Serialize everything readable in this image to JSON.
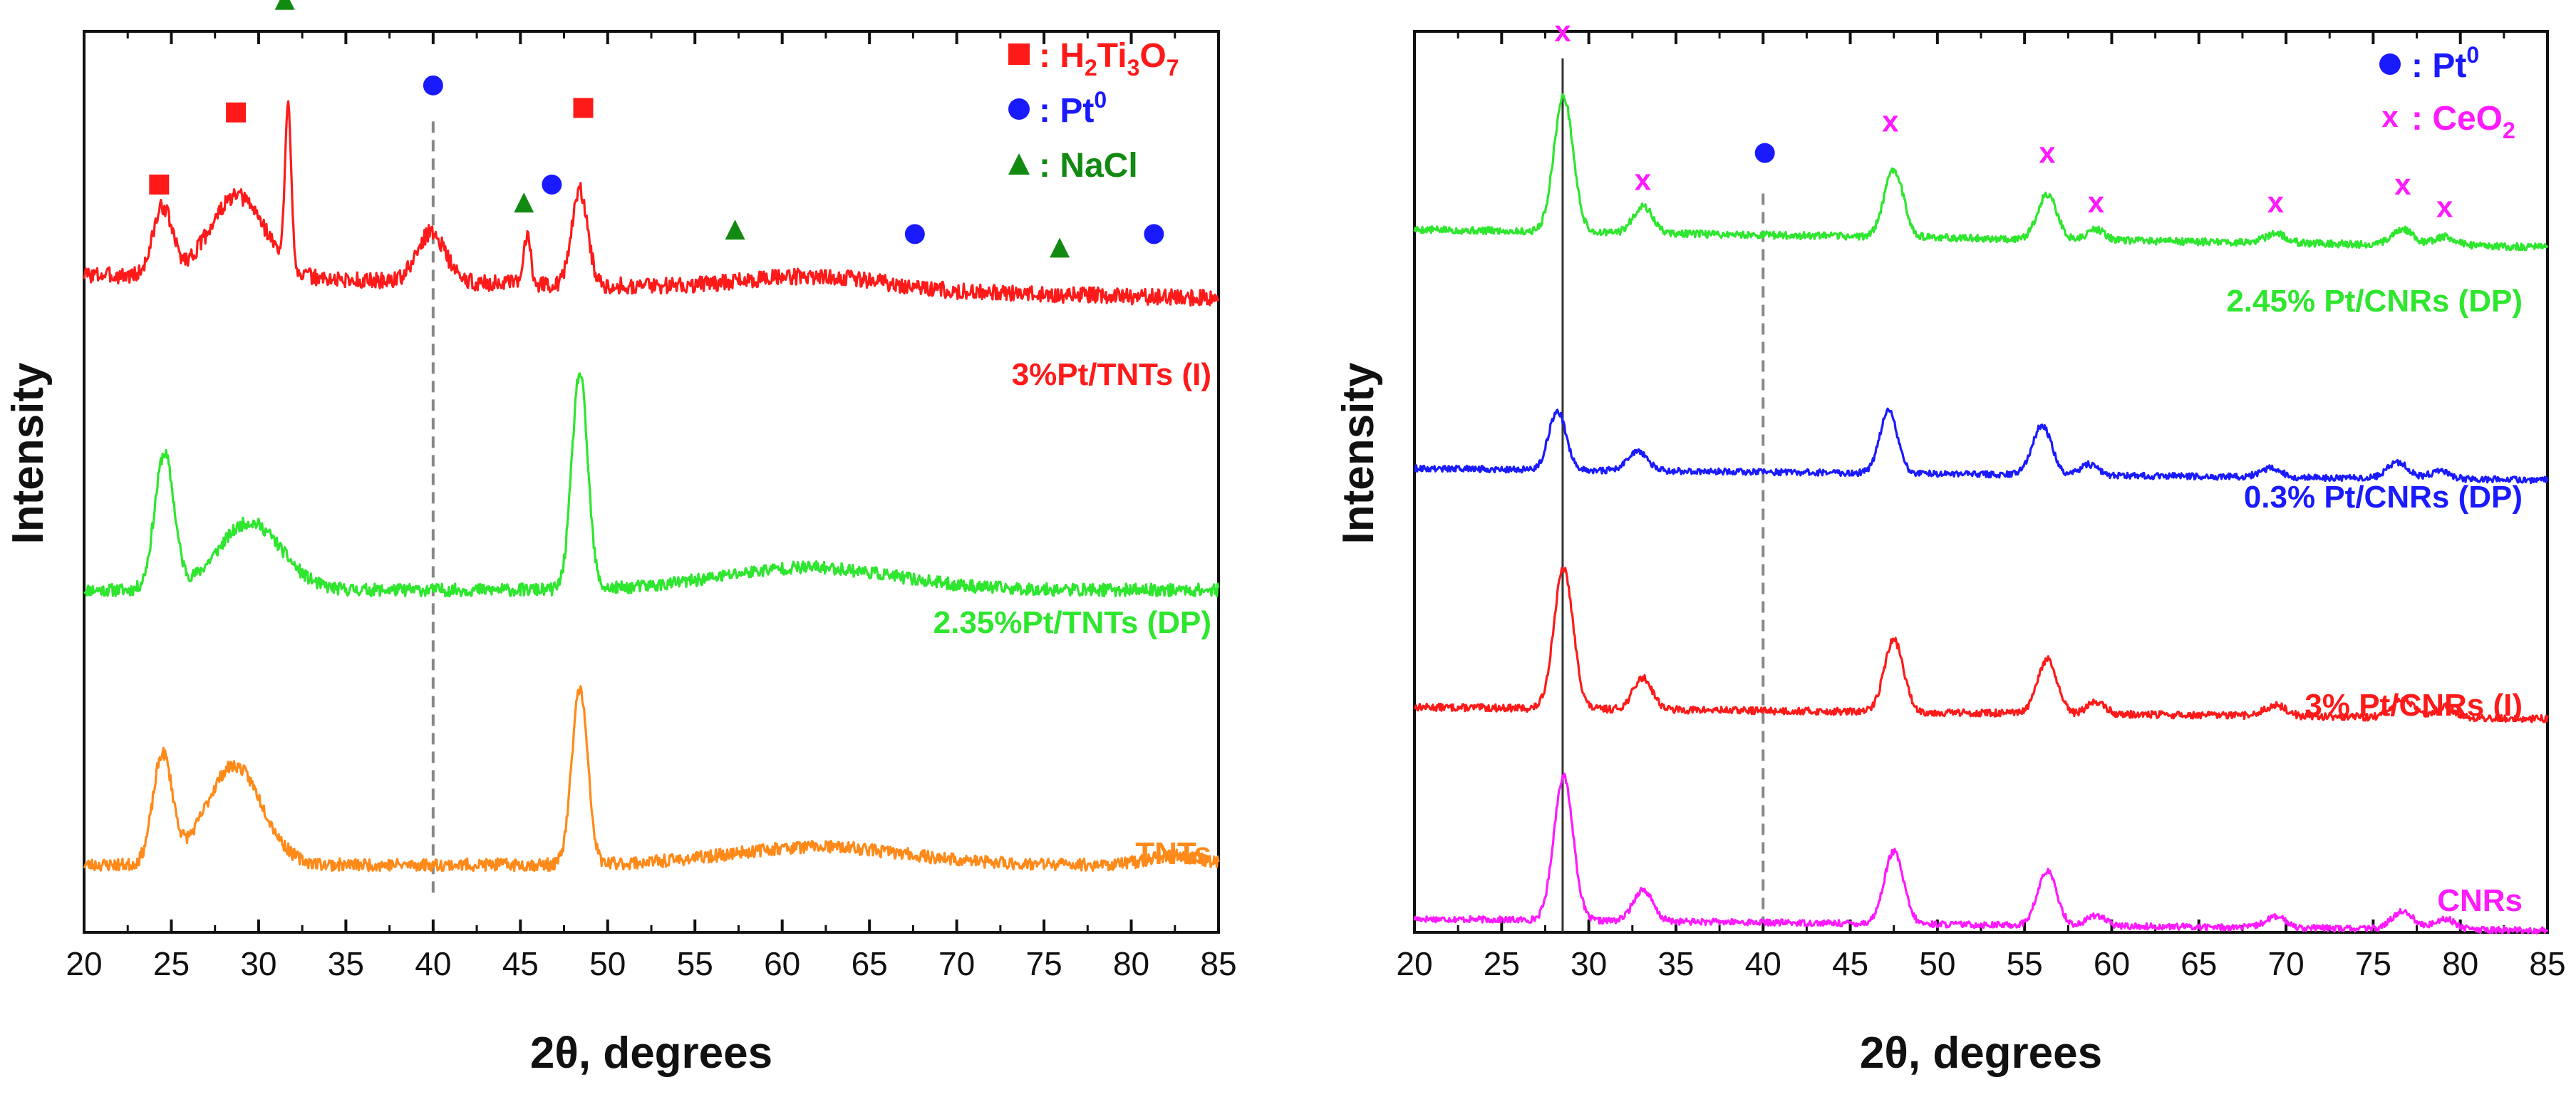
{
  "chart_data": [
    {
      "type": "line",
      "panel": "left",
      "title": "",
      "xlabel": "2θ, degrees",
      "ylabel": "Intensity",
      "xlim": [
        20,
        85
      ],
      "xticks": [
        20,
        25,
        30,
        35,
        40,
        45,
        50,
        55,
        60,
        65,
        70,
        75,
        80,
        85
      ],
      "ylim": [
        0,
        10
      ],
      "y_ticks_shown": false,
      "grid": false,
      "legend": {
        "placement": "top-right",
        "entries": [
          {
            "marker": "square",
            "color": "#ff1a1a",
            "text": ": H",
            "sub1": "2",
            "mid": "Ti",
            "sub2": "3",
            "mid2": "O",
            "sub3": "7",
            "bold": true
          },
          {
            "marker": "circle",
            "color": "#1a1aff",
            "text": ": Pt",
            "sup": "0",
            "bold": false
          },
          {
            "marker": "triangle",
            "color": "#128a12",
            "text": ": NaCl",
            "bold": true
          }
        ]
      },
      "reference_lines": [
        {
          "x": 40,
          "style": "dashed",
          "color": "#888888"
        }
      ],
      "series": [
        {
          "name": "3%Pt/TNTs (I)",
          "color": "#ff1a1a",
          "baseline": 7.3,
          "slope": -0.004,
          "noise": 0.09,
          "seed": 3,
          "peaks": [
            {
              "x": 24.5,
              "h": 0.75,
              "w": 0.55
            },
            {
              "x": 28.8,
              "h": 0.9,
              "w": 1.6
            },
            {
              "x": 31.7,
              "h": 1.75,
              "w": 0.18
            },
            {
              "x": 39.9,
              "h": 0.55,
              "w": 0.8
            },
            {
              "x": 45.4,
              "h": 0.55,
              "w": 0.2
            },
            {
              "x": 48.4,
              "h": 1.05,
              "w": 0.45
            },
            {
              "x": 62.0,
              "h": 0.15,
              "w": 4.0
            }
          ]
        },
        {
          "name": "2.35%Pt/TNTs (DP)",
          "color": "#2ee62e",
          "baseline": 3.8,
          "slope": 0.0,
          "noise": 0.07,
          "seed": 11,
          "peaks": [
            {
              "x": 24.6,
              "h": 1.5,
              "w": 0.55
            },
            {
              "x": 29.5,
              "h": 0.75,
              "w": 1.8
            },
            {
              "x": 48.4,
              "h": 2.4,
              "w": 0.45
            },
            {
              "x": 61.5,
              "h": 0.25,
              "w": 5.0
            }
          ]
        },
        {
          "name": "TNTs",
          "color": "#ff8a1a",
          "baseline": 0.75,
          "slope": 0.0,
          "noise": 0.07,
          "seed": 23,
          "peaks": [
            {
              "x": 24.5,
              "h": 1.2,
              "w": 0.55
            },
            {
              "x": 28.6,
              "h": 1.1,
              "w": 1.6
            },
            {
              "x": 48.4,
              "h": 1.95,
              "w": 0.45
            },
            {
              "x": 62.0,
              "h": 0.2,
              "w": 5.0
            },
            {
              "x": 82.5,
              "h": 0.1,
              "w": 1.5
            }
          ]
        }
      ],
      "marker_annotations": [
        {
          "shape": "square",
          "color": "#ff1a1a",
          "x": 24.3,
          "y": 8.3
        },
        {
          "shape": "square",
          "color": "#ff1a1a",
          "x": 28.7,
          "y": 9.1
        },
        {
          "shape": "triangle",
          "color": "#128a12",
          "x": 31.5,
          "y": 10.35
        },
        {
          "shape": "circle",
          "color": "#1a1aff",
          "x": 40.0,
          "y": 9.4
        },
        {
          "shape": "triangle",
          "color": "#128a12",
          "x": 45.2,
          "y": 8.1
        },
        {
          "shape": "circle",
          "color": "#1a1aff",
          "x": 46.8,
          "y": 8.3
        },
        {
          "shape": "square",
          "color": "#ff1a1a",
          "x": 48.6,
          "y": 9.15
        },
        {
          "shape": "triangle",
          "color": "#128a12",
          "x": 57.3,
          "y": 7.8
        },
        {
          "shape": "circle",
          "color": "#1a1aff",
          "x": 67.6,
          "y": 7.75
        },
        {
          "shape": "triangle",
          "color": "#128a12",
          "x": 75.9,
          "y": 7.6
        },
        {
          "shape": "circle",
          "color": "#1a1aff",
          "x": 81.3,
          "y": 7.75
        }
      ]
    },
    {
      "type": "line",
      "panel": "right",
      "title": "",
      "xlabel": "2θ, degrees",
      "ylabel": "Intensity",
      "xlim": [
        20,
        85
      ],
      "xticks": [
        20,
        25,
        30,
        35,
        40,
        45,
        50,
        55,
        60,
        65,
        70,
        75,
        80,
        85
      ],
      "ylim": [
        0,
        10
      ],
      "y_ticks_shown": false,
      "grid": false,
      "legend": {
        "placement": "top-right",
        "entries": [
          {
            "marker": "circle",
            "color": "#1a1aff",
            "text": ": Pt",
            "sup": "0",
            "bold": true
          },
          {
            "marker": "x",
            "color": "#ff1aff",
            "text": ": CeO",
            "sub1": "2",
            "bold": true
          }
        ]
      },
      "reference_lines": [
        {
          "x": 28.5,
          "style": "solid",
          "color": "#333333"
        },
        {
          "x": 40,
          "style": "dashed",
          "color": "#888888"
        }
      ],
      "series": [
        {
          "name": "2.45% Pt/CNRs (DP)",
          "color": "#2ee62e",
          "baseline": 7.8,
          "slope": -0.003,
          "noise": 0.04,
          "seed": 5,
          "peaks": [
            {
              "x": 28.55,
              "h": 1.5,
              "w": 0.55
            },
            {
              "x": 33.1,
              "h": 0.3,
              "w": 0.55
            },
            {
              "x": 47.5,
              "h": 0.75,
              "w": 0.55
            },
            {
              "x": 56.3,
              "h": 0.5,
              "w": 0.55
            },
            {
              "x": 59.1,
              "h": 0.12,
              "w": 0.5
            },
            {
              "x": 69.4,
              "h": 0.1,
              "w": 0.6
            },
            {
              "x": 76.7,
              "h": 0.17,
              "w": 0.6
            },
            {
              "x": 79.1,
              "h": 0.1,
              "w": 0.6
            }
          ]
        },
        {
          "name": "0.3% Pt/CNRs (DP)",
          "color": "#1a1aff",
          "baseline": 5.15,
          "slope": -0.002,
          "noise": 0.035,
          "seed": 9,
          "peaks": [
            {
              "x": 28.2,
              "h": 0.65,
              "w": 0.5
            },
            {
              "x": 32.8,
              "h": 0.22,
              "w": 0.55
            },
            {
              "x": 47.2,
              "h": 0.7,
              "w": 0.5
            },
            {
              "x": 56.0,
              "h": 0.55,
              "w": 0.55
            },
            {
              "x": 58.7,
              "h": 0.12,
              "w": 0.5
            },
            {
              "x": 69.1,
              "h": 0.1,
              "w": 0.6
            },
            {
              "x": 76.4,
              "h": 0.18,
              "w": 0.6
            },
            {
              "x": 78.8,
              "h": 0.08,
              "w": 0.6
            }
          ]
        },
        {
          "name": "3% Pt/CNRs (I)",
          "color": "#ff1a1a",
          "baseline": 2.5,
          "slope": -0.002,
          "noise": 0.04,
          "seed": 13,
          "peaks": [
            {
              "x": 28.55,
              "h": 1.55,
              "w": 0.55
            },
            {
              "x": 33.1,
              "h": 0.35,
              "w": 0.55
            },
            {
              "x": 47.5,
              "h": 0.8,
              "w": 0.55
            },
            {
              "x": 56.3,
              "h": 0.6,
              "w": 0.55
            },
            {
              "x": 59.1,
              "h": 0.14,
              "w": 0.5
            },
            {
              "x": 69.4,
              "h": 0.12,
              "w": 0.6
            },
            {
              "x": 76.7,
              "h": 0.2,
              "w": 0.6
            },
            {
              "x": 79.1,
              "h": 0.12,
              "w": 0.6
            }
          ]
        },
        {
          "name": "CNRs",
          "color": "#ff1aff",
          "baseline": 0.15,
          "slope": -0.002,
          "noise": 0.035,
          "seed": 17,
          "peaks": [
            {
              "x": 28.55,
              "h": 1.6,
              "w": 0.55
            },
            {
              "x": 33.1,
              "h": 0.35,
              "w": 0.55
            },
            {
              "x": 47.5,
              "h": 0.8,
              "w": 0.55
            },
            {
              "x": 56.3,
              "h": 0.6,
              "w": 0.55
            },
            {
              "x": 59.1,
              "h": 0.12,
              "w": 0.5
            },
            {
              "x": 69.4,
              "h": 0.12,
              "w": 0.6
            },
            {
              "x": 76.7,
              "h": 0.2,
              "w": 0.6
            },
            {
              "x": 79.1,
              "h": 0.12,
              "w": 0.6
            }
          ]
        }
      ],
      "marker_annotations": [
        {
          "shape": "x",
          "color": "#ff1aff",
          "x": 28.5,
          "y": 10.0
        },
        {
          "shape": "x",
          "color": "#ff1aff",
          "x": 33.1,
          "y": 8.35
        },
        {
          "shape": "circle",
          "color": "#1a1aff",
          "x": 40.1,
          "y": 8.65
        },
        {
          "shape": "x",
          "color": "#ff1aff",
          "x": 47.3,
          "y": 9.0
        },
        {
          "shape": "x",
          "color": "#ff1aff",
          "x": 56.3,
          "y": 8.65
        },
        {
          "shape": "x",
          "color": "#ff1aff",
          "x": 59.1,
          "y": 8.1
        },
        {
          "shape": "x",
          "color": "#ff1aff",
          "x": 69.4,
          "y": 8.1
        },
        {
          "shape": "x",
          "color": "#ff1aff",
          "x": 76.7,
          "y": 8.3
        },
        {
          "shape": "x",
          "color": "#ff1aff",
          "x": 79.1,
          "y": 8.05
        }
      ]
    }
  ]
}
